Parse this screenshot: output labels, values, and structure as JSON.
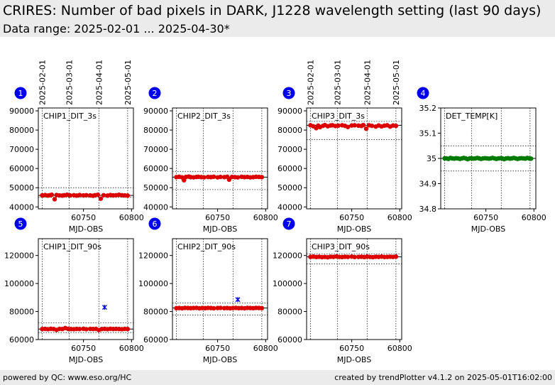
{
  "header": {
    "title": "CRIRES: Number of bad pixels in DARK, J1228 wavelength setting (last 90 days)",
    "subtitle": "Data range: 2025-02-01 ... 2025-04-30*"
  },
  "footer": {
    "left": "powered by QC: www.eso.org/HC",
    "right": "created by trendPlotter v4.1.2 on 2025-05-01T16:02:00"
  },
  "colors": {
    "data_red": "#dd0000",
    "data_green": "#007a00",
    "outlier_blue": "#0000ee",
    "badge_blue": "#0000ee",
    "header_bg": "#ebebeb"
  },
  "chart_data": [
    {
      "id": "1",
      "type": "scatter",
      "label": "CHIP1_DIT_3s",
      "xlabel": "MJD-OBS",
      "xlim": [
        60703,
        60802
      ],
      "ylim": [
        39000,
        91500
      ],
      "yticks": [
        40000,
        50000,
        60000,
        70000,
        80000,
        90000
      ],
      "xticks": [
        60750,
        60800
      ],
      "date_ticks": [
        "2025-02-01",
        "2025-03-01",
        "2025-04-01",
        "2025-05-01"
      ],
      "date_tick_mjd": [
        60707,
        60735,
        60766,
        60796
      ],
      "ref": 46000,
      "band": [
        45000,
        50000
      ],
      "color": "red",
      "x": [
        60707,
        60710,
        60713,
        60715,
        60717,
        60720,
        60722,
        60725,
        60728,
        60730,
        60733,
        60736,
        60740,
        60743,
        60746,
        60750,
        60753,
        60757,
        60760,
        60762,
        60765,
        60768,
        60771,
        60775,
        60778,
        60781,
        60784,
        60787,
        60790,
        60793,
        60796
      ],
      "y": [
        46000,
        46200,
        45900,
        46100,
        46300,
        44000,
        46200,
        46000,
        45900,
        46100,
        46300,
        46000,
        46100,
        45900,
        46200,
        46000,
        46100,
        46000,
        45800,
        46100,
        46300,
        44300,
        46100,
        45900,
        46200,
        46000,
        46100,
        46300,
        46100,
        46000,
        45900
      ],
      "outliers": []
    },
    {
      "id": "2",
      "type": "scatter",
      "label": "CHIP2_DIT_3s",
      "xlabel": "MJD-OBS",
      "xlim": [
        60703,
        60802
      ],
      "ylim": [
        39000,
        91500
      ],
      "yticks": [
        40000,
        50000,
        60000,
        70000,
        80000,
        90000
      ],
      "xticks": [
        60750,
        60800
      ],
      "date_ticks": [],
      "date_tick_mjd": [
        60707,
        60735,
        60766,
        60796
      ],
      "ref": 55500,
      "band": [
        49000,
        58500
      ],
      "color": "red",
      "x": [
        60707,
        60710,
        60713,
        60715,
        60717,
        60720,
        60722,
        60725,
        60728,
        60730,
        60733,
        60736,
        60740,
        60743,
        60746,
        60750,
        60753,
        60757,
        60760,
        60762,
        60765,
        60768,
        60771,
        60775,
        60778,
        60781,
        60784,
        60787,
        60790,
        60793,
        60796
      ],
      "y": [
        55500,
        55700,
        55400,
        53900,
        55600,
        55800,
        55500,
        55400,
        55600,
        55700,
        55500,
        55400,
        55600,
        55500,
        55700,
        55400,
        55600,
        55500,
        55700,
        54200,
        55600,
        55500,
        55400,
        55700,
        55500,
        55600,
        55400,
        55500,
        55700,
        55600,
        55500
      ],
      "outliers": []
    },
    {
      "id": "3",
      "type": "scatter",
      "label": "CHIP3_DIT_3s",
      "xlabel": "MJD-OBS",
      "xlim": [
        60703,
        60802
      ],
      "ylim": [
        39000,
        91500
      ],
      "yticks": [
        40000,
        50000,
        60000,
        70000,
        80000,
        90000
      ],
      "xticks": [
        60750,
        60800
      ],
      "date_ticks": [
        "2025-02-01",
        "2025-03-01",
        "2025-04-01",
        "2025-05-01"
      ],
      "date_tick_mjd": [
        60707,
        60735,
        60766,
        60796
      ],
      "ref": 82500,
      "band": [
        75000,
        84500
      ],
      "color": "red",
      "x": [
        60707,
        60710,
        60713,
        60715,
        60717,
        60720,
        60722,
        60725,
        60728,
        60730,
        60733,
        60736,
        60740,
        60743,
        60746,
        60750,
        60753,
        60757,
        60760,
        60762,
        60765,
        60768,
        60771,
        60775,
        60778,
        60781,
        60784,
        60787,
        60790,
        60793,
        60796
      ],
      "y": [
        82500,
        82000,
        81000,
        82300,
        81500,
        82200,
        82600,
        82000,
        82400,
        82500,
        82100,
        82300,
        82500,
        82200,
        81600,
        82400,
        82500,
        82300,
        82100,
        82600,
        80700,
        82500,
        82200,
        81800,
        82400,
        81900,
        82300,
        82500,
        81800,
        82400,
        82200
      ],
      "outliers": []
    },
    {
      "id": "4",
      "type": "scatter",
      "label": "DET_TEMP[K]",
      "xlabel": "MJD-OBS",
      "xlim": [
        60703,
        60802
      ],
      "ylim": [
        34.8,
        35.2
      ],
      "yticks": [
        34.8,
        34.9,
        35.0,
        35.1,
        35.2
      ],
      "xticks": [
        60750,
        60800
      ],
      "date_ticks": [],
      "date_tick_mjd": [
        60707,
        60735,
        60766,
        60796
      ],
      "ref": 35.0,
      "band": [
        34.95,
        35.05
      ],
      "color": "green",
      "x": [
        60707,
        60709,
        60711,
        60713,
        60715,
        60717,
        60719,
        60721,
        60723,
        60725,
        60727,
        60729,
        60731,
        60733,
        60735,
        60737,
        60739,
        60741,
        60743,
        60745,
        60747,
        60749,
        60751,
        60753,
        60755,
        60757,
        60759,
        60761,
        60763,
        60765,
        60767,
        60769,
        60771,
        60773,
        60775,
        60777,
        60779,
        60781,
        60783,
        60785,
        60787,
        60789,
        60791,
        60793,
        60795,
        60797
      ],
      "y": [
        35.0,
        35.0,
        34.998,
        35.002,
        35.0,
        34.999,
        35.001,
        35.0,
        34.998,
        35.0,
        35.002,
        35.0,
        34.997,
        35.0,
        35.001,
        34.999,
        35.0,
        35.002,
        35.0,
        34.998,
        35.0,
        35.001,
        35.0,
        34.999,
        35.0,
        35.002,
        35.0,
        34.998,
        35.0,
        35.001,
        35.0,
        34.997,
        35.0,
        35.001,
        34.999,
        35.0,
        35.002,
        35.0,
        34.998,
        35.0,
        35.001,
        35.0,
        34.999,
        35.002,
        35.0,
        34.999
      ],
      "outliers": []
    },
    {
      "id": "5",
      "type": "scatter",
      "label": "CHIP1_DIT_90s",
      "xlabel": "MJD-OBS",
      "xlim": [
        60703,
        60802
      ],
      "ylim": [
        60000,
        132000
      ],
      "yticks": [
        60000,
        80000,
        100000,
        120000
      ],
      "xticks": [
        60750,
        60800
      ],
      "date_ticks": [],
      "date_tick_mjd": [
        60707,
        60735,
        60766,
        60796
      ],
      "ref": 67500,
      "band": [
        65000,
        72000
      ],
      "color": "red",
      "x": [
        60707,
        60710,
        60713,
        60716,
        60719,
        60722,
        60725,
        60728,
        60731,
        60734,
        60737,
        60740,
        60743,
        60746,
        60750,
        60753,
        60757,
        60760,
        60763,
        60766,
        60769,
        60772,
        60775,
        60778,
        60781,
        60784,
        60787,
        60790,
        60793,
        60796
      ],
      "y": [
        67500,
        67600,
        67400,
        67700,
        67500,
        66900,
        67600,
        67500,
        68200,
        67600,
        67500,
        67400,
        67600,
        67500,
        67700,
        67400,
        67600,
        67500,
        67600,
        66800,
        67500,
        67600,
        67400,
        67700,
        67500,
        67600,
        67500,
        67400,
        67600,
        67500
      ],
      "outliers": [
        {
          "x": 60772,
          "y": 83000
        }
      ]
    },
    {
      "id": "6",
      "type": "scatter",
      "label": "CHIP2_DIT_90s",
      "xlabel": "MJD-OBS",
      "xlim": [
        60703,
        60802
      ],
      "ylim": [
        60000,
        132000
      ],
      "yticks": [
        60000,
        80000,
        100000,
        120000
      ],
      "xticks": [
        60750,
        60800
      ],
      "date_ticks": [],
      "date_tick_mjd": [
        60707,
        60735,
        60766,
        60796
      ],
      "ref": 82500,
      "band": [
        77500,
        86000
      ],
      "color": "red",
      "x": [
        60707,
        60710,
        60713,
        60716,
        60719,
        60722,
        60725,
        60728,
        60731,
        60734,
        60737,
        60740,
        60743,
        60746,
        60750,
        60753,
        60757,
        60760,
        60763,
        60766,
        60769,
        60772,
        60775,
        60778,
        60781,
        60784,
        60787,
        60790,
        60793,
        60796
      ],
      "y": [
        82400,
        82500,
        82300,
        82600,
        82500,
        82400,
        82500,
        82600,
        82300,
        82500,
        82400,
        82600,
        82500,
        82300,
        82500,
        82600,
        82400,
        82500,
        82300,
        82500,
        82600,
        82400,
        82500,
        82300,
        82600,
        82500,
        82400,
        82600,
        82500,
        82400
      ],
      "outliers": [
        {
          "x": 60771,
          "y": 88500
        }
      ]
    },
    {
      "id": "7",
      "type": "scatter",
      "label": "CHIP3_DIT_90s",
      "xlabel": "MJD-OBS",
      "xlim": [
        60703,
        60802
      ],
      "ylim": [
        60000,
        132000
      ],
      "yticks": [
        60000,
        80000,
        100000,
        120000
      ],
      "xticks": [
        60750,
        60800
      ],
      "date_ticks": [],
      "date_tick_mjd": [
        60707,
        60735,
        60766,
        60796
      ],
      "ref": 119000,
      "band": [
        114000,
        121000
      ],
      "color": "red",
      "x": [
        60707,
        60710,
        60713,
        60716,
        60719,
        60722,
        60725,
        60728,
        60731,
        60734,
        60737,
        60740,
        60743,
        60746,
        60750,
        60753,
        60757,
        60760,
        60763,
        60766,
        60769,
        60772,
        60775,
        60778,
        60781,
        60784,
        60787,
        60790,
        60793,
        60796
      ],
      "y": [
        119000,
        119200,
        118900,
        119100,
        118800,
        119000,
        118700,
        119100,
        119000,
        119300,
        119000,
        118900,
        119100,
        119000,
        119200,
        118900,
        119000,
        119100,
        118900,
        119200,
        119000,
        118800,
        119100,
        119000,
        119200,
        118900,
        119000,
        119100,
        119000,
        119200
      ],
      "outliers": []
    }
  ]
}
